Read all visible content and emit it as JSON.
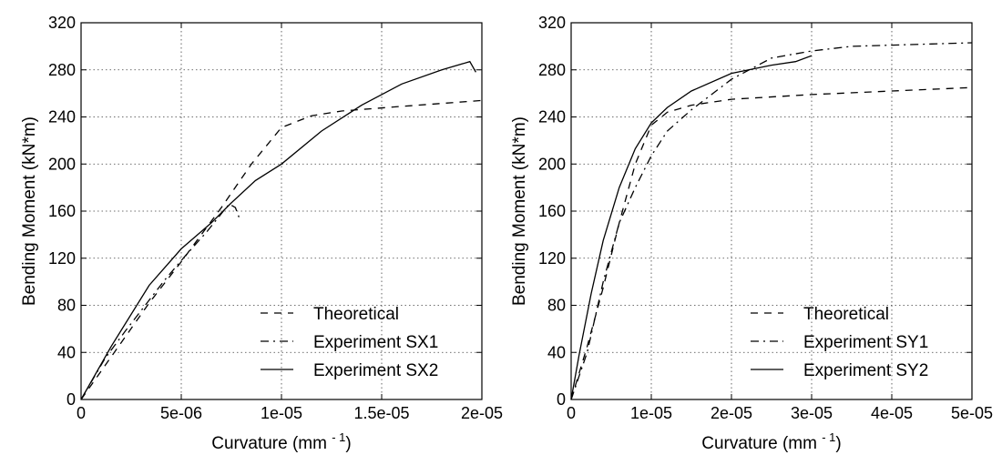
{
  "chart_data": [
    {
      "type": "line",
      "xlabel": "Curvature (mm",
      "xlabel_exp": "- 1",
      "xlabel_end": ")",
      "ylabel": "Bending Moment (kN*m)",
      "xlim": [
        0,
        2e-05
      ],
      "ylim": [
        0,
        320
      ],
      "xticks": [
        "0",
        "5e-06",
        "1e-05",
        "1.5e-05",
        "2e-05"
      ],
      "xtick_values": [
        0,
        5e-06,
        1e-05,
        1.5e-05,
        2e-05
      ],
      "yticks": [
        "0",
        "40",
        "80",
        "120",
        "160",
        "200",
        "240",
        "280",
        "320"
      ],
      "ytick_values": [
        0,
        40,
        80,
        120,
        160,
        200,
        240,
        280,
        320
      ],
      "grid": true,
      "legend": "lower-right",
      "series": [
        {
          "name": "Theoretical",
          "dash": "dashed",
          "x": [
            0,
            3.4e-06,
            5e-06,
            7e-06,
            8.5e-06,
            1e-05,
            1.15e-05,
            1.3e-05,
            1.6e-05,
            2e-05
          ],
          "y": [
            0,
            82,
            117,
            163,
            200,
            231,
            241,
            245,
            249,
            254
          ]
        },
        {
          "name": "Experiment SX1",
          "dash": "dashdot",
          "x": [
            0,
            1.2e-06,
            2.2e-06,
            3.2e-06,
            4.2e-06,
            5.2e-06,
            6.3e-06,
            7.1e-06,
            7.4e-06,
            7.7e-06,
            7.9e-06
          ],
          "y": [
            0,
            35,
            58,
            80,
            102,
            122,
            143,
            160,
            166,
            163,
            154
          ]
        },
        {
          "name": "Experiment SX2",
          "dash": "solid",
          "x": [
            0,
            1.5e-06,
            3.4e-06,
            5e-06,
            6.5e-06,
            7.5e-06,
            8.7e-06,
            1e-05,
            1.2e-05,
            1.4e-05,
            1.6e-05,
            1.8e-05,
            1.9e-05,
            1.94e-05,
            1.97e-05
          ],
          "y": [
            0,
            45,
            97,
            128,
            150,
            167,
            186,
            200,
            228,
            250,
            268,
            280,
            285,
            287,
            278
          ]
        }
      ]
    },
    {
      "type": "line",
      "xlabel": "Curvature (mm",
      "xlabel_exp": "- 1",
      "xlabel_end": ")",
      "ylabel": "Bending Moment (kN*m)",
      "xlim": [
        0,
        5e-05
      ],
      "ylim": [
        0,
        320
      ],
      "xticks": [
        "0",
        "1e-05",
        "2e-05",
        "3e-05",
        "4e-05",
        "5e-05"
      ],
      "xtick_values": [
        0,
        1e-05,
        2e-05,
        3e-05,
        4e-05,
        5e-05
      ],
      "yticks": [
        "0",
        "40",
        "80",
        "120",
        "160",
        "200",
        "240",
        "280",
        "320"
      ],
      "ytick_values": [
        0,
        40,
        80,
        120,
        160,
        200,
        240,
        280,
        320
      ],
      "grid": true,
      "legend": "lower-right",
      "series": [
        {
          "name": "Theoretical",
          "dash": "dashed",
          "x": [
            0,
            2e-06,
            4e-06,
            6e-06,
            8e-06,
            1e-05,
            1.2e-05,
            1.5e-05,
            2e-05,
            3e-05,
            4e-05,
            5e-05
          ],
          "y": [
            0,
            45,
            95,
            150,
            200,
            233,
            244,
            250,
            255,
            259,
            262,
            265
          ]
        },
        {
          "name": "Experiment SY1",
          "dash": "dashdot",
          "x": [
            0,
            2e-06,
            4e-06,
            6e-06,
            8e-06,
            1e-05,
            1.2e-05,
            1.5e-05,
            2e-05,
            2.5e-05,
            3e-05,
            3.5e-05,
            4e-05,
            4.5e-05,
            5e-05
          ],
          "y": [
            0,
            40,
            100,
            150,
            180,
            207,
            228,
            246,
            272,
            290,
            296,
            300,
            301,
            302,
            303
          ]
        },
        {
          "name": "Experiment SY2",
          "dash": "solid",
          "x": [
            0,
            1e-06,
            2.5e-06,
            4e-06,
            6e-06,
            8e-06,
            1e-05,
            1.2e-05,
            1.5e-05,
            2e-05,
            2.5e-05,
            2.8e-05,
            3e-05
          ],
          "y": [
            0,
            38,
            90,
            135,
            180,
            213,
            235,
            248,
            262,
            277,
            284,
            287,
            292
          ]
        }
      ]
    }
  ]
}
